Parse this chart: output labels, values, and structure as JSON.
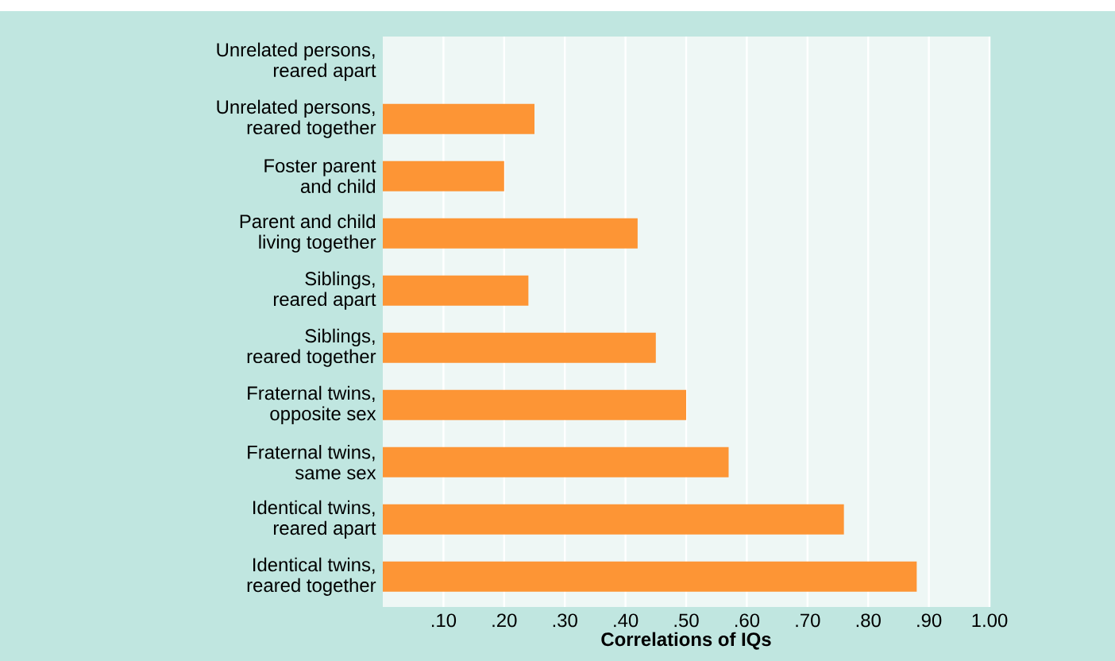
{
  "chart_data": {
    "type": "bar",
    "orientation": "horizontal",
    "xlabel": "Correlations of IQs",
    "categories": [
      "Unrelated persons,\nreared apart",
      "Unrelated persons,\nreared together",
      "Foster parent\nand child",
      "Parent and child\nliving together",
      "Siblings,\nreared apart",
      "Siblings,\nreared together",
      "Fraternal twins,\nopposite sex",
      "Fraternal twins,\nsame sex",
      "Identical twins,\nreared apart",
      "Identical twins,\nreared together"
    ],
    "values": [
      null,
      0.25,
      0.2,
      0.42,
      0.24,
      0.45,
      0.5,
      0.57,
      0.76,
      0.88
    ],
    "color": "#fd9535",
    "xlim": [
      0,
      1
    ],
    "xticks": [
      {
        "value": 0.1,
        "label": ".10"
      },
      {
        "value": 0.2,
        "label": ".20"
      },
      {
        "value": 0.3,
        "label": ".30"
      },
      {
        "value": 0.4,
        "label": ".40"
      },
      {
        "value": 0.5,
        "label": ".50"
      },
      {
        "value": 0.6,
        "label": ".60"
      },
      {
        "value": 0.7,
        "label": ".70"
      },
      {
        "value": 0.8,
        "label": ".80"
      },
      {
        "value": 0.9,
        "label": ".90"
      },
      {
        "value": 1.0,
        "label": "1.00"
      }
    ],
    "grid": "x"
  }
}
